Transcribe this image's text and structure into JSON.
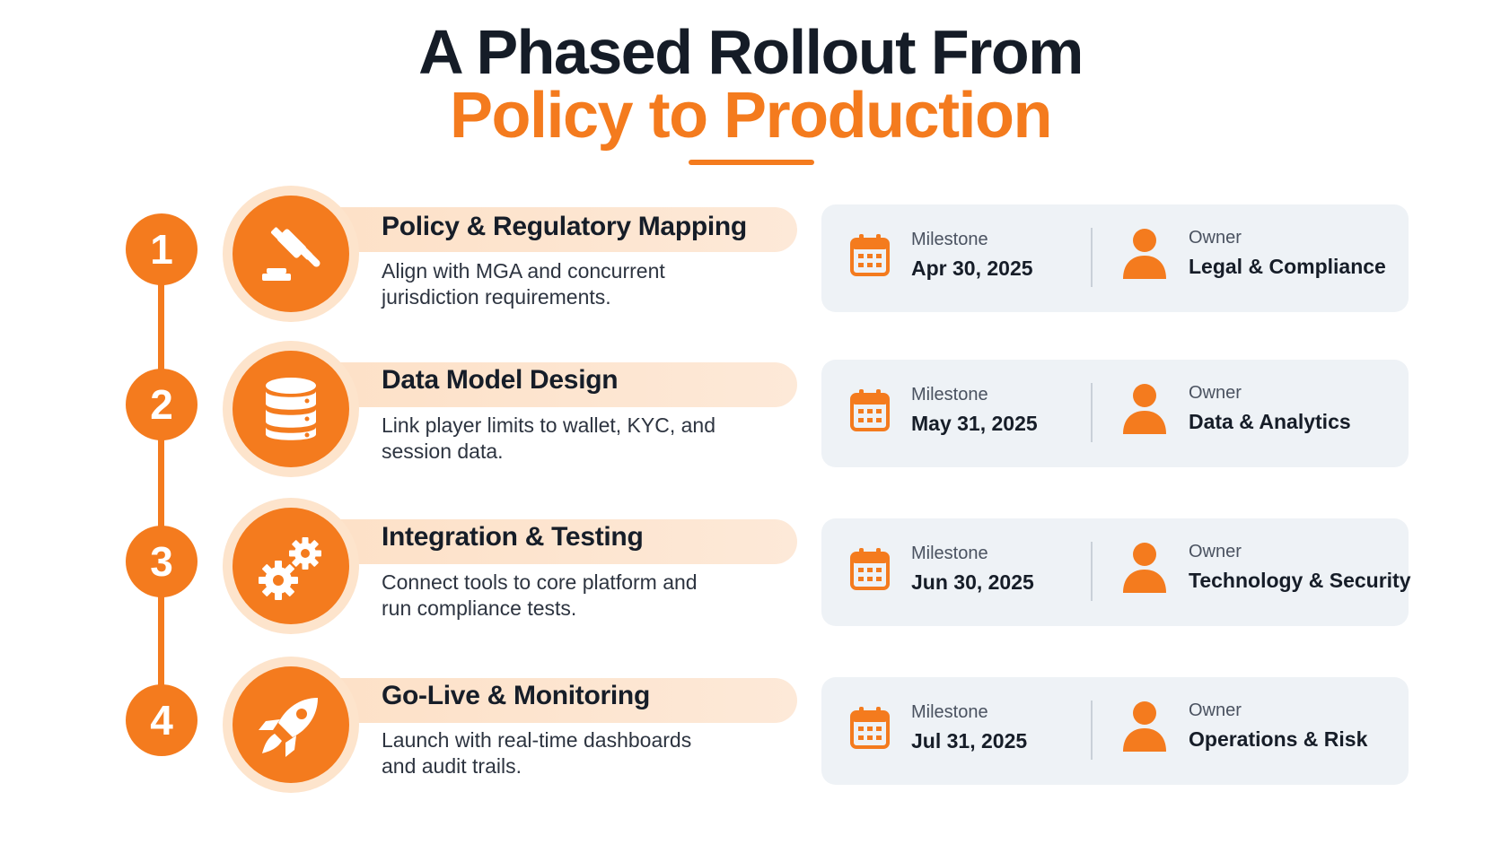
{
  "title": {
    "line1": "A Phased Rollout From",
    "line2": "Policy to Production"
  },
  "phases": [
    {
      "number": "1",
      "icon": "gavel-icon",
      "title": "Policy & Regulatory Mapping",
      "description": "Align with MGA and concurrent jurisdiction requirements.",
      "milestone_label": "Milestone",
      "milestone_date": "Apr 30, 2025",
      "owner_label": "Owner",
      "owner": "Legal & Compliance"
    },
    {
      "number": "2",
      "icon": "database-icon",
      "title": "Data Model Design",
      "description": "Link player limits to wallet, KYC, and session data.",
      "milestone_label": "Milestone",
      "milestone_date": "May 31, 2025",
      "owner_label": "Owner",
      "owner": "Data & Analytics"
    },
    {
      "number": "3",
      "icon": "gears-icon",
      "title": "Integration & Testing",
      "description": "Connect tools to core platform and run compliance tests.",
      "milestone_label": "Milestone",
      "milestone_date": "Jun 30, 2025",
      "owner_label": "Owner",
      "owner": "Technology & Security"
    },
    {
      "number": "4",
      "icon": "rocket-icon",
      "title": "Go-Live & Monitoring",
      "description": "Launch with real-time dashboards and audit trails.",
      "milestone_label": "Milestone",
      "milestone_date": "Jul 31, 2025",
      "owner_label": "Owner",
      "owner": "Operations & Risk"
    }
  ],
  "colors": {
    "accent": "#f47b1e",
    "accent_light": "#fde4cc",
    "card_bg": "#eef2f6",
    "heading": "#151c27"
  }
}
